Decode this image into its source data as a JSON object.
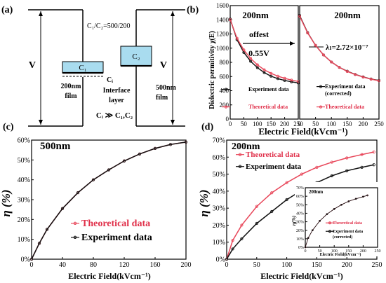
{
  "panels": {
    "a": {
      "label": "(a)",
      "ratio": "C₁/C₂=500/200",
      "v_left": "V",
      "v_right": "V",
      "c1": "C₁",
      "c2": "C₂",
      "ci": "Cᵢ",
      "film_200": "200nm\nfilm",
      "film_500": "500nm\nfilm",
      "interface": "Interface\nlayer",
      "relation": "Cᵢ ≫ C₁,C₂"
    },
    "b": {
      "label": "(b)"
    },
    "c": {
      "label": "(c)"
    },
    "d": {
      "label": "(d)"
    }
  },
  "chart_data": [
    {
      "panel": "b-left",
      "type": "scatter",
      "title": "200nm",
      "annotation": [
        "offest",
        "0.55V"
      ],
      "ylabel": "Dielectric permitivity χ(E)",
      "xlabel": "Electric Field(kVcm⁻¹)",
      "xlim": [
        0,
        250
      ],
      "ylim": [
        0,
        1600
      ],
      "xticks": [
        0,
        50,
        100,
        150,
        200,
        250
      ],
      "yticks": [
        0,
        200,
        400,
        600,
        800,
        1000,
        1200,
        1400,
        1600
      ],
      "series": [
        {
          "name": "Experiment data",
          "color": "#111111",
          "x": [
            0,
            25,
            50,
            75,
            100,
            125,
            150,
            175,
            200,
            225,
            250
          ],
          "y": [
            1410,
            1120,
            940,
            815,
            725,
            655,
            605,
            570,
            545,
            525,
            510
          ]
        },
        {
          "name": "Theoretical data",
          "color": "#e8475a",
          "x": [
            0,
            25,
            50,
            75,
            100,
            125,
            150,
            175,
            200,
            225,
            250
          ],
          "y": [
            1400,
            1140,
            975,
            855,
            765,
            695,
            645,
            605,
            575,
            550,
            530
          ]
        }
      ]
    },
    {
      "panel": "b-right",
      "type": "scatter",
      "title": "200nm",
      "annotation": "λₗ=2.72×10⁻⁷",
      "xlabel": "Electric Field(kVcm⁻¹)",
      "xlim": [
        0,
        250
      ],
      "ylim": [
        0,
        1600
      ],
      "xticks": [
        0,
        50,
        100,
        150,
        200,
        250
      ],
      "series": [
        {
          "name": "Experiment data\n(corrected)",
          "color": "#111111",
          "x": [
            0,
            25,
            50,
            75,
            100,
            125,
            150,
            175,
            200,
            225,
            250
          ],
          "y": [
            1460,
            1220,
            1040,
            905,
            805,
            730,
            675,
            630,
            595,
            565,
            545
          ]
        },
        {
          "name": "Theoretical data",
          "color": "#e8475a",
          "x": [
            0,
            25,
            50,
            75,
            100,
            125,
            150,
            175,
            200,
            225,
            250
          ],
          "y": [
            1450,
            1215,
            1040,
            905,
            805,
            730,
            672,
            628,
            592,
            563,
            540
          ]
        }
      ]
    },
    {
      "panel": "c",
      "type": "scatter",
      "title": "500nm",
      "ylabel": "η (%)",
      "xlabel": "Electric Field(kVcm⁻¹)",
      "xlim": [
        0,
        200
      ],
      "ylim": [
        0,
        60
      ],
      "xticks": [
        0,
        40,
        80,
        120,
        160,
        200
      ],
      "yticks": [
        "0%",
        "10%",
        "20%",
        "30%",
        "40%",
        "50%",
        "60%"
      ],
      "series": [
        {
          "name": "Theoretical data",
          "color": "#e8475a",
          "x": [
            0,
            10,
            20,
            40,
            60,
            80,
            100,
            120,
            140,
            160,
            180,
            200
          ],
          "y": [
            0,
            8,
            15,
            25.5,
            33.5,
            40,
            45,
            49.5,
            53,
            55.8,
            57.8,
            59
          ]
        },
        {
          "name": "Experiment data",
          "color": "#111111",
          "x": [
            0,
            10,
            20,
            40,
            60,
            80,
            100,
            120,
            140,
            160,
            180,
            200
          ],
          "y": [
            0,
            8,
            15,
            25.5,
            33.5,
            40,
            45,
            49.5,
            53,
            55.8,
            57.8,
            59
          ]
        }
      ]
    },
    {
      "panel": "d",
      "type": "scatter",
      "title": "200nm",
      "ylabel": "η (%)",
      "xlabel": "Electric Field(kVcm⁻¹)",
      "xlim": [
        0,
        250
      ],
      "ylim": [
        0,
        70
      ],
      "xticks": [
        0,
        50,
        100,
        150,
        200,
        250
      ],
      "yticks": [
        "0%",
        "10%",
        "20%",
        "30%",
        "40%",
        "50%",
        "60%",
        "70%"
      ],
      "series": [
        {
          "name": "Theoretical data",
          "color": "#e8475a",
          "x": [
            0,
            10,
            25,
            50,
            75,
            100,
            125,
            150,
            175,
            200,
            225,
            245
          ],
          "y": [
            0,
            11,
            20,
            31,
            39,
            45,
            50,
            54,
            57,
            59.5,
            61.5,
            63
          ]
        },
        {
          "name": "Experiment data",
          "color": "#111111",
          "x": [
            0,
            10,
            25,
            50,
            75,
            100,
            125,
            150,
            175,
            200,
            225,
            245
          ],
          "y": [
            0,
            6,
            12,
            21,
            28,
            35,
            40.5,
            45,
            49,
            52,
            54,
            55.5
          ]
        }
      ]
    },
    {
      "panel": "d-inset",
      "type": "scatter",
      "title": "200nm",
      "ylabel": "η(%)",
      "xlabel": "Electric Field(kVcm⁻¹)",
      "xlim": [
        0,
        250
      ],
      "ylim": [
        0,
        70
      ],
      "xticks": [
        0,
        50,
        100,
        150,
        200,
        250
      ],
      "yticks": [
        "0%",
        "10%",
        "20%",
        "30%",
        "40%",
        "50%",
        "60%",
        "70%"
      ],
      "series": [
        {
          "name": "Theoretical data",
          "color": "#e8475a",
          "x": [
            0,
            10,
            25,
            50,
            75,
            100,
            125,
            150,
            175,
            200,
            215
          ],
          "y": [
            0,
            11,
            20,
            31,
            39,
            45,
            50,
            54,
            57,
            59.5,
            61
          ]
        },
        {
          "name": "Experiment data\n(corrected)",
          "color": "#111111",
          "x": [
            0,
            10,
            25,
            50,
            75,
            100,
            125,
            150,
            175,
            200,
            215
          ],
          "y": [
            0,
            11,
            20,
            31,
            39,
            45,
            50,
            54,
            57,
            59.5,
            61
          ]
        }
      ]
    }
  ]
}
